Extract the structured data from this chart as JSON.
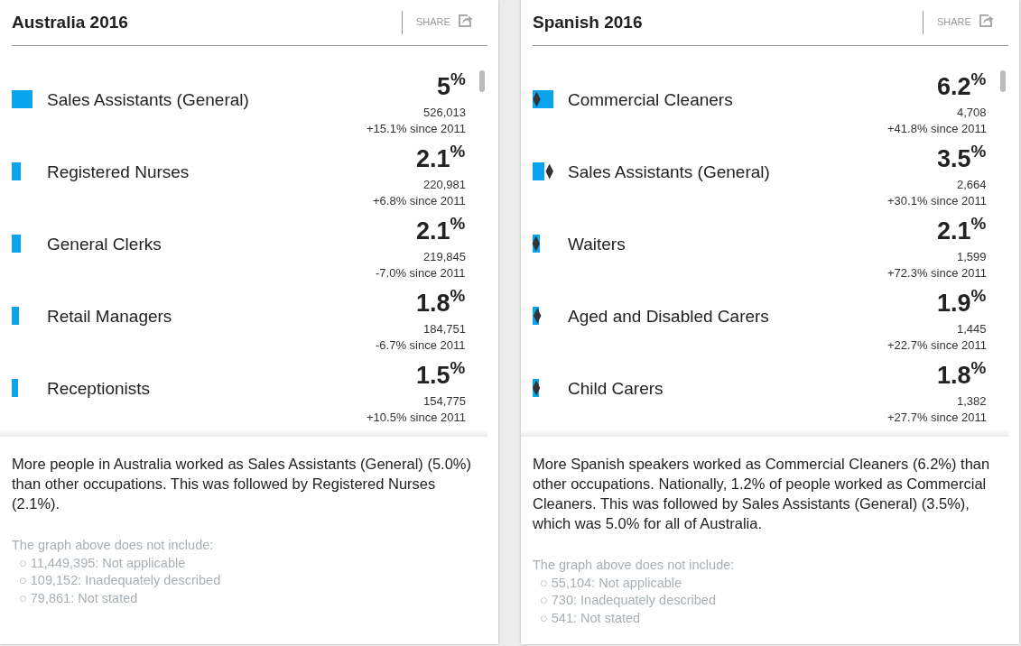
{
  "chart_data": [
    {
      "type": "bar",
      "orientation": "horizontal",
      "title": "Australia 2016",
      "tick_labels": "y",
      "legend": false,
      "categories": [
        "Sales Assistants (General)",
        "Registered Nurses",
        "General Clerks",
        "Retail Managers",
        "Receptionists"
      ],
      "series": [
        {
          "color": "#0ba4ef",
          "values": [
            5,
            2.1,
            2.1,
            1.8,
            1.5
          ],
          "value_labels": [
            "5$^{%}$",
            "2.1$^{%}$",
            "2.1$^{%}$",
            "1.8$^{%}$",
            "1.5$^{%}$"
          ]
        }
      ],
      "annotations": [
        "SHARE",
        "526,013",
        "+15.1% since 2011",
        "220,981",
        "+6.8% since 2011",
        "219,845",
        "-7.0% since 2011",
        "184,751",
        "-6.7% since 2011",
        "154,775",
        "+10.5% since 2011",
        "More people in Australia worked as Sales Assistants (General) (5.0%) than other occupations. This was followed by Registered Nurses (2.1%).",
        "The graph above does not include:",
        "○ 11,449,395: Not applicable",
        "○ 109,152: Inadequately described",
        "○ 79,861: Not stated"
      ]
    },
    {
      "type": "bar",
      "orientation": "horizontal",
      "title": "Spanish 2016",
      "tick_labels": "y",
      "legend": false,
      "categories": [
        "Commercial Cleaners",
        "Sales Assistants (General)",
        "Waiters",
        "Aged and Disabled Carers",
        "Child Carers"
      ],
      "series": [
        {
          "color": "#0ba4ef",
          "values": [
            6.2,
            3.5,
            2.1,
            1.9,
            1.8
          ],
          "value_labels": [
            "6.2$^{%}$",
            "3.5$^{%}$",
            "2.1$^{%}$",
            "1.9$^{%}$",
            "1.8$^{%}$"
          ]
        },
        {
          "type": "scatter",
          "color": "#333333",
          "values": [
            1.2,
            5.0,
            1.0,
            1.4,
            1.1
          ]
        }
      ],
      "annotations": [
        "SHARE",
        "4,708",
        "+41.8% since 2011",
        "2,664",
        "+30.1% since 2011",
        "1,599",
        "+72.3% since 2011",
        "1,445",
        "+22.7% since 2011",
        "1,382",
        "+27.7% since 2011",
        "More Spanish speakers worked as Commercial Cleaners (6.2%) than other occupations. Nationally, 1.2% of people worked as Commercial Cleaners. This was followed by Sales Assistants (General) (3.5%), which was 5.0% for all of Australia.",
        "The graph above does not include:",
        "○ 55,104: Not applicable",
        "○ 730: Inadequately described",
        "○ 541: Not stated"
      ]
    }
  ]
}
